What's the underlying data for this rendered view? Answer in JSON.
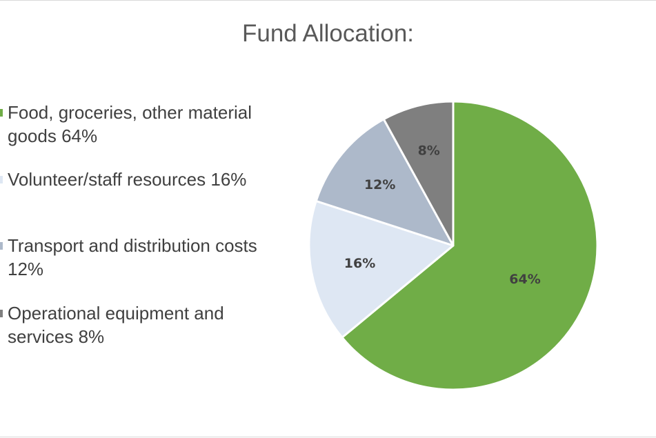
{
  "chart_data": {
    "type": "pie",
    "title": "Fund Allocation:",
    "categories": [
      "Food, groceries, other material goods",
      "Volunteer/staff resources",
      "Transport and distribution costs",
      "Operational equipment and services"
    ],
    "values": [
      64,
      16,
      12,
      8
    ],
    "data_labels": [
      "64%",
      "16%",
      "12%",
      "8%"
    ],
    "colors": [
      "#70ad47",
      "#dee7f3",
      "#adb9ca",
      "#7f7f7f"
    ],
    "legend_entries": [
      "Food, groceries, other material goods  64%",
      "Volunteer/staff resources  16%",
      "Transport and distribution costs 12%",
      "Operational equipment and services 8%"
    ],
    "legend_position": "left",
    "start_angle": "12 o'clock",
    "direction": "clockwise"
  }
}
